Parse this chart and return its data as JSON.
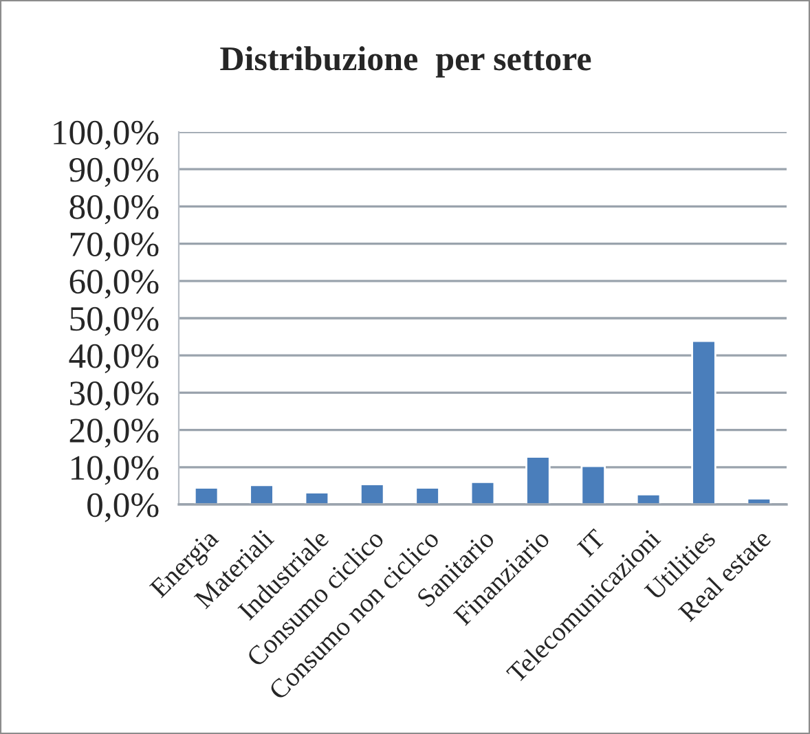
{
  "chart_data": {
    "type": "bar",
    "title": "Distribuzione  per settore",
    "categories": [
      "Energia",
      "Materiali",
      "Industriale",
      "Consumo ciclico",
      "Consumo non ciclico",
      "Sanitario",
      "Finanziario",
      "IT",
      "Telecomunicazioni",
      "Utilities",
      "Real estate"
    ],
    "values": [
      4.5,
      5.2,
      3.2,
      5.4,
      4.5,
      6.0,
      12.8,
      10.3,
      2.7,
      43.9,
      1.6
    ],
    "color": "#4a7ebb",
    "ylim": [
      0,
      100
    ],
    "yticks": [
      {
        "value": 0,
        "label": "0,0%"
      },
      {
        "value": 10,
        "label": "10,0%"
      },
      {
        "value": 20,
        "label": "20,0%"
      },
      {
        "value": 30,
        "label": "30,0%"
      },
      {
        "value": 40,
        "label": "40,0%"
      },
      {
        "value": 50,
        "label": "50,0%"
      },
      {
        "value": 60,
        "label": "60,0%"
      },
      {
        "value": 70,
        "label": "70,0%"
      },
      {
        "value": 80,
        "label": "80,0%"
      },
      {
        "value": 90,
        "label": "90,0%"
      },
      {
        "value": 100,
        "label": "100,0%"
      }
    ],
    "grid": "y"
  }
}
